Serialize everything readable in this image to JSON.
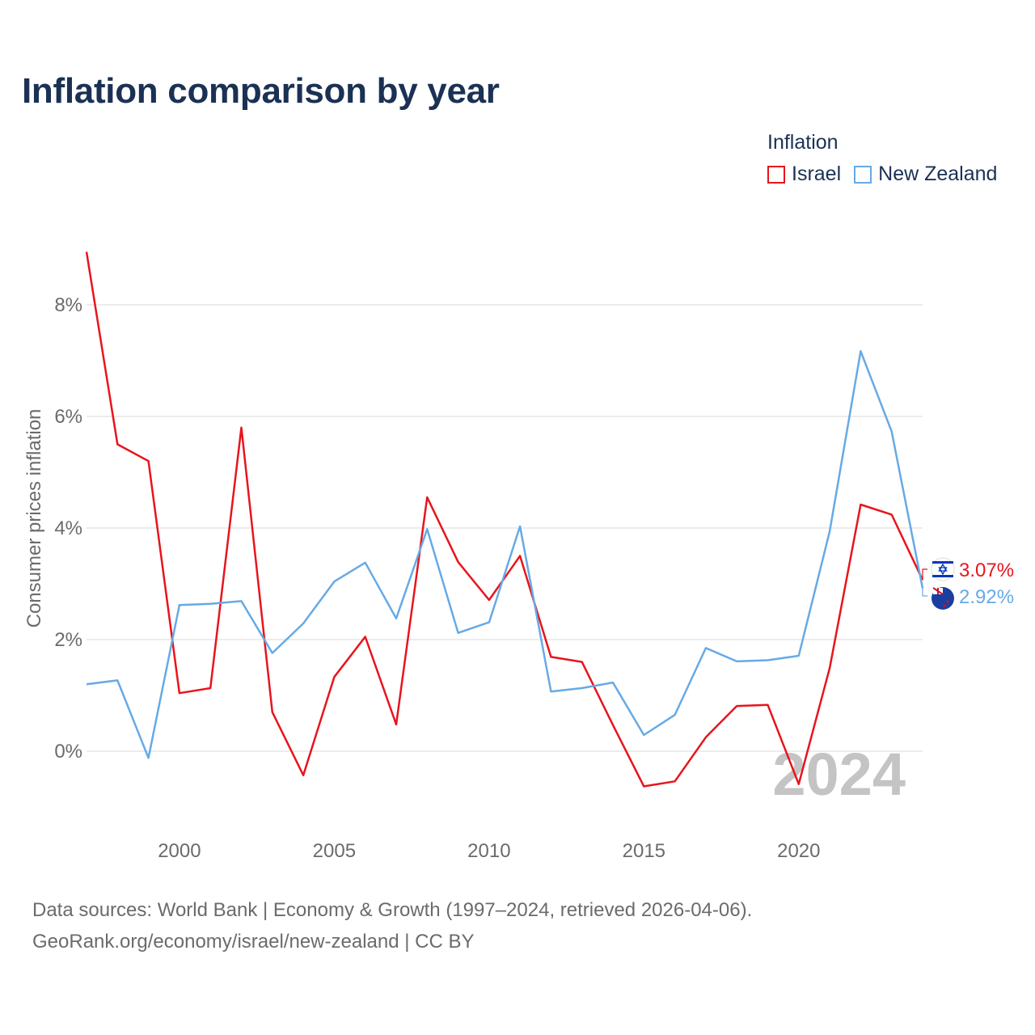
{
  "title": "Inflation comparison by year",
  "legend": {
    "title": "Inflation"
  },
  "footer": {
    "line1": "Data sources: World Bank | Economy & Growth (1997–2024, retrieved 2026-04-06).",
    "line2": "GeoRank.org/economy/israel/new-zealand | CC BY"
  },
  "flag_icons": [
    "israel-flag-icon",
    "new-zealand-flag-icon"
  ],
  "chart_data": {
    "type": "line",
    "title": "Inflation comparison by year",
    "xlabel": "",
    "ylabel": "Consumer prices inflation",
    "xlim": [
      1997,
      2024
    ],
    "ylim": [
      -1.2,
      9.6
    ],
    "yticks": [
      0,
      2,
      4,
      6,
      8
    ],
    "ytick_labels": [
      "0%",
      "2%",
      "4%",
      "6%",
      "8%"
    ],
    "xticks": [
      2000,
      2005,
      2010,
      2015,
      2020
    ],
    "xtick_labels": [
      "2000",
      "2005",
      "2010",
      "2015",
      "2020"
    ],
    "grid": true,
    "legend_position": "top-right",
    "year_watermark": "2024",
    "x": [
      1997,
      1998,
      1999,
      2000,
      2001,
      2002,
      2003,
      2004,
      2005,
      2006,
      2007,
      2008,
      2009,
      2010,
      2011,
      2012,
      2013,
      2014,
      2015,
      2016,
      2017,
      2018,
      2019,
      2020,
      2021,
      2022,
      2023,
      2024
    ],
    "series": [
      {
        "name": "Israel",
        "color": "#e8141c",
        "end_label": "3.07%",
        "values": [
          8.95,
          5.5,
          5.2,
          1.04,
          1.13,
          5.8,
          0.7,
          -0.43,
          1.33,
          2.05,
          0.48,
          4.55,
          3.39,
          2.71,
          3.5,
          1.69,
          1.6,
          0.47,
          -0.63,
          -0.54,
          0.25,
          0.81,
          0.83,
          -0.59,
          1.49,
          4.42,
          4.24,
          3.07
        ]
      },
      {
        "name": "New Zealand",
        "color": "#66aae6",
        "end_label": "2.92%",
        "values": [
          1.2,
          1.27,
          -0.12,
          2.62,
          2.64,
          2.69,
          1.76,
          2.29,
          3.04,
          3.38,
          2.38,
          3.98,
          2.12,
          2.31,
          4.03,
          1.07,
          1.13,
          1.23,
          0.29,
          0.65,
          1.85,
          1.61,
          1.63,
          1.71,
          3.94,
          7.17,
          5.73,
          2.92
        ]
      }
    ]
  }
}
